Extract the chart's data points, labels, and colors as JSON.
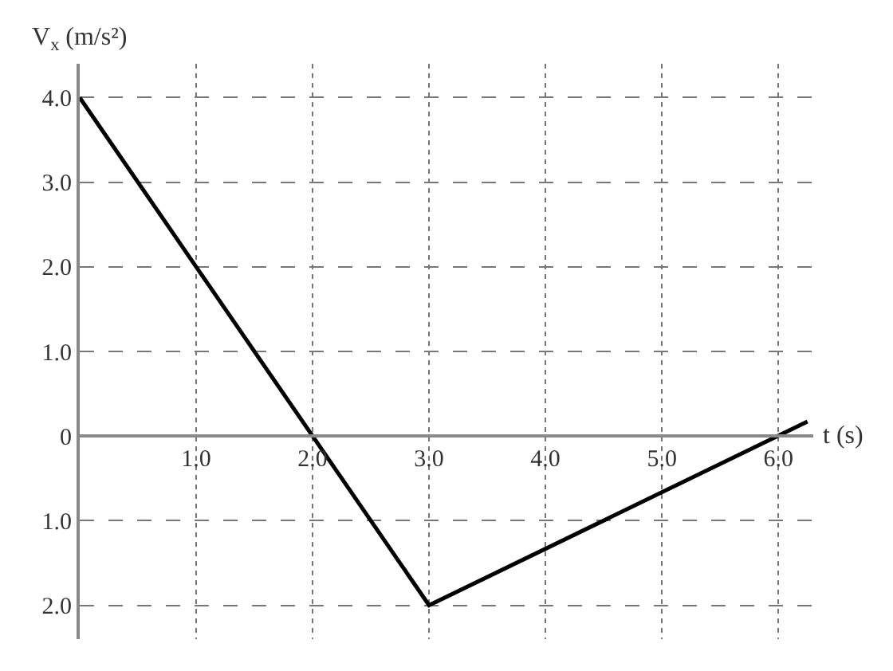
{
  "chart_data": {
    "type": "line",
    "xlabel": "t (s)",
    "ylabel": "V$_{x}$ (m/s²)",
    "x": [
      0,
      3,
      6.25
    ],
    "series": [
      {
        "color": "#000000",
        "values": [
          4,
          -2,
          0.17
        ]
      }
    ],
    "xlim": [
      0,
      6.3
    ],
    "ylim": [
      -2.4,
      4.4
    ],
    "xticks": [
      {
        "value": 1,
        "label": "1.0"
      },
      {
        "value": 2,
        "label": "2.0"
      },
      {
        "value": 3,
        "label": "3.0"
      },
      {
        "value": 4,
        "label": "4.0"
      },
      {
        "value": 5,
        "label": "5.0"
      },
      {
        "value": 6,
        "label": "6.0"
      }
    ],
    "yticks": [
      {
        "value": -2,
        "label": "2.0"
      },
      {
        "value": -1,
        "label": "1.0"
      },
      0,
      {
        "value": 1,
        "label": "1.0"
      },
      {
        "value": 2,
        "label": "2.0"
      },
      {
        "value": 3,
        "label": "3.0"
      },
      {
        "value": 4,
        "label": "4.0"
      }
    ],
    "grid": true,
    "marker": "none",
    "line_style": "solid"
  }
}
